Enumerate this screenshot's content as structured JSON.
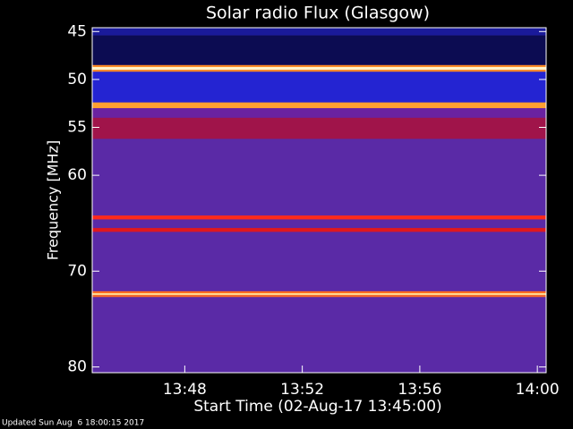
{
  "chart_data": {
    "type": "spectrogram",
    "title": "Solar radio Flux (Glasgow)",
    "y_label": "Frequency [MHz]",
    "x_label": "Start Time (02-Aug-17 13:45:00)",
    "footer": "Updated Sun Aug  6 18:00:15 2017",
    "ylim": [
      44.6,
      80.6
    ],
    "yticks": [
      45,
      50,
      55,
      60,
      70,
      80
    ],
    "y_inverted": true,
    "xlim": [
      -0.15,
      15.3
    ],
    "xticks": [
      {
        "value": 3,
        "label": "13:48"
      },
      {
        "value": 7,
        "label": "13:52"
      },
      {
        "value": 11,
        "label": "13:56"
      },
      {
        "value": 15,
        "label": "14:00"
      }
    ],
    "bands": [
      {
        "from": 44.6,
        "to": 80.6,
        "color": "#5a2aa6"
      },
      {
        "from": 44.6,
        "to": 45.4,
        "color": "#1a1a9a"
      },
      {
        "from": 45.4,
        "to": 48.5,
        "color": "#0c0c52"
      },
      {
        "from": 48.5,
        "to": 48.7,
        "color": "#ff8c20"
      },
      {
        "from": 48.7,
        "to": 49.0,
        "color": "#fff4c8"
      },
      {
        "from": 49.0,
        "to": 49.2,
        "color": "#ff8c20"
      },
      {
        "from": 49.2,
        "to": 52.4,
        "color": "#2424d2"
      },
      {
        "from": 52.4,
        "to": 53.0,
        "color": "#ffa030"
      },
      {
        "from": 53.0,
        "to": 54.0,
        "color": "#6a22a0"
      },
      {
        "from": 54.0,
        "to": 56.2,
        "color": "#a0144a"
      },
      {
        "from": 64.2,
        "to": 64.6,
        "color": "#ff2a1a"
      },
      {
        "from": 65.5,
        "to": 65.9,
        "color": "#e0181e"
      },
      {
        "from": 72.1,
        "to": 72.3,
        "color": "#ff6a20"
      },
      {
        "from": 72.3,
        "to": 72.5,
        "color": "#ffd890"
      },
      {
        "from": 72.5,
        "to": 72.7,
        "color": "#ff6a20"
      }
    ]
  }
}
